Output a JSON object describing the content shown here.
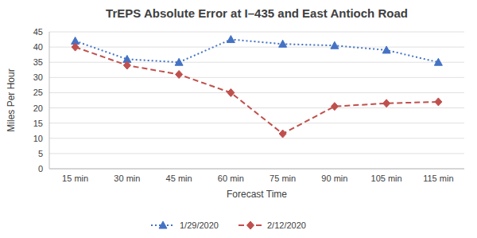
{
  "chart_data": {
    "type": "line",
    "title": "TrEPS Absolute Error at I–435 and East Antioch Road",
    "xlabel": "Forecast Time",
    "ylabel": "Miles Per Hour",
    "categories": [
      "15 min",
      "30 min",
      "45 min",
      "60 min",
      "75 min",
      "90 min",
      "105 min",
      "115 min"
    ],
    "series": [
      {
        "name": "1/29/2020",
        "color": "#4472C4",
        "marker": "triangle",
        "line_style": "dotted",
        "values": [
          42,
          36,
          35,
          42.5,
          41,
          40.5,
          39,
          35
        ]
      },
      {
        "name": "2/12/2020",
        "color": "#C0504D",
        "marker": "diamond",
        "line_style": "dashed",
        "values": [
          40,
          34,
          31,
          25,
          11.5,
          20.5,
          21.5,
          22
        ]
      }
    ],
    "ylim": [
      0,
      45
    ],
    "yticks": [
      0,
      5,
      10,
      15,
      20,
      25,
      30,
      35,
      40,
      45
    ],
    "grid": true,
    "legend": "bottom"
  }
}
